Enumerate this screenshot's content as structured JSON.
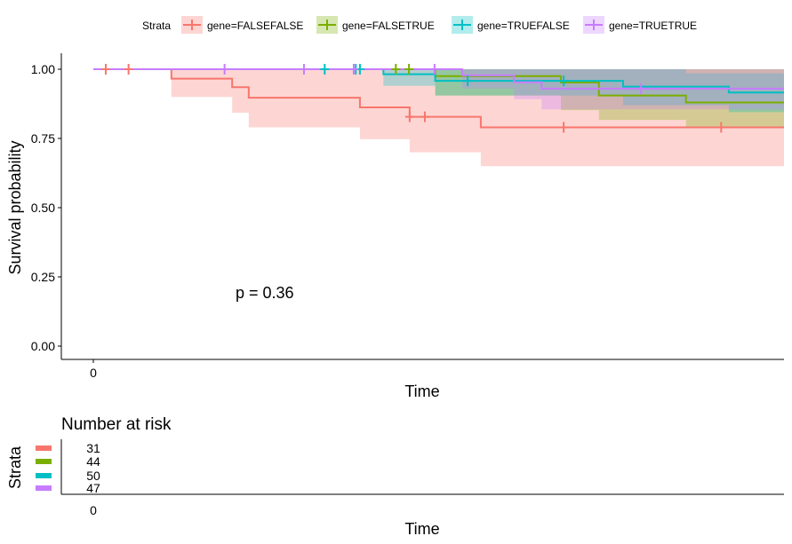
{
  "chart_data": {
    "type": "line",
    "subtype": "kaplan-meier survival",
    "xlabel": "Time",
    "ylabel": "Survival probability",
    "xlim": [
      -4.6,
      100
    ],
    "ylim": [
      0,
      1
    ],
    "x_ticks": [
      "0"
    ],
    "y_ticks": [
      "0.00",
      "0.25",
      "0.50",
      "0.75",
      "1.00"
    ],
    "grid": false,
    "annotation": "p = 0.36",
    "legend": {
      "title": "Strata",
      "position": "top"
    },
    "series": [
      {
        "name": "gene=FALSEFALSE",
        "color": "#F8766D",
        "steps": [
          [
            0,
            1.0
          ],
          [
            11.3,
            0.966
          ],
          [
            20.1,
            0.935
          ],
          [
            22.5,
            0.897
          ],
          [
            38.6,
            0.862
          ],
          [
            45.8,
            0.828
          ],
          [
            56.1,
            0.79
          ],
          [
            100,
            0.79
          ]
        ],
        "lower": [
          [
            0,
            1.0
          ],
          [
            11.3,
            0.9
          ],
          [
            20.1,
            0.843
          ],
          [
            22.5,
            0.79
          ],
          [
            38.6,
            0.747
          ],
          [
            45.8,
            0.7
          ],
          [
            56.1,
            0.65
          ],
          [
            100,
            0.65
          ]
        ],
        "upper": [
          [
            0,
            1.0
          ],
          [
            100,
            1.0
          ]
        ],
        "censored": [
          [
            1.8,
            1.0
          ],
          [
            5.1,
            1.0
          ],
          [
            45.8,
            0.828
          ],
          [
            48.0,
            0.828
          ],
          [
            68.1,
            0.79
          ],
          [
            90.9,
            0.79
          ]
        ]
      },
      {
        "name": "gene=FALSETRUE",
        "color": "#7CAE00",
        "steps": [
          [
            0,
            1.0
          ],
          [
            49.5,
            0.975
          ],
          [
            67.7,
            0.952
          ],
          [
            73.2,
            0.905
          ],
          [
            85.8,
            0.88
          ],
          [
            100,
            0.88
          ]
        ],
        "lower": [
          [
            0,
            1.0
          ],
          [
            49.5,
            0.905
          ],
          [
            67.7,
            0.852
          ],
          [
            73.2,
            0.817
          ],
          [
            85.8,
            0.79
          ],
          [
            100,
            0.79
          ]
        ],
        "upper": [
          [
            0,
            1.0
          ],
          [
            100,
            1.0
          ]
        ],
        "censored": [
          [
            43.8,
            1.0
          ],
          [
            45.7,
            1.0
          ]
        ]
      },
      {
        "name": "gene=TRUEFALSE",
        "color": "#00BFC4",
        "steps": [
          [
            0,
            1.0
          ],
          [
            42.0,
            0.982
          ],
          [
            49.5,
            0.958
          ],
          [
            76.7,
            0.937
          ],
          [
            92.0,
            0.916
          ],
          [
            100,
            0.916
          ]
        ],
        "lower": [
          [
            0,
            1.0
          ],
          [
            42.0,
            0.94
          ],
          [
            49.5,
            0.905
          ],
          [
            76.7,
            0.87
          ],
          [
            92.0,
            0.845
          ],
          [
            100,
            0.845
          ]
        ],
        "upper": [
          [
            0,
            1.0
          ],
          [
            85.8,
            0.985
          ],
          [
            100,
            0.985
          ]
        ],
        "censored": [
          [
            33.5,
            1.0
          ],
          [
            38.0,
            1.0
          ],
          [
            38.6,
            1.0
          ],
          [
            54.2,
            0.958
          ],
          [
            68.1,
            0.958
          ]
        ]
      },
      {
        "name": "gene=TRUETRUE",
        "color": "#C77CFF",
        "steps": [
          [
            0,
            1.0
          ],
          [
            53.4,
            0.978
          ],
          [
            60.9,
            0.953
          ],
          [
            64.9,
            0.93
          ],
          [
            100,
            0.93
          ]
        ],
        "lower": [
          [
            0,
            1.0
          ],
          [
            53.4,
            0.93
          ],
          [
            60.9,
            0.892
          ],
          [
            64.9,
            0.855
          ],
          [
            100,
            0.855
          ]
        ],
        "upper": [
          [
            0,
            1.0
          ],
          [
            100,
            1.0
          ]
        ],
        "censored": [
          [
            19.0,
            1.0
          ],
          [
            30.5,
            1.0
          ],
          [
            37.7,
            1.0
          ],
          [
            49.4,
            1.0
          ],
          [
            79.3,
            0.93
          ]
        ]
      }
    ]
  },
  "risk_table": {
    "title": "Number at risk",
    "ylabel": "Strata",
    "xlabel": "Time",
    "x_ticks": [
      "0"
    ],
    "counts": [
      "31",
      "44",
      "50",
      "47"
    ]
  }
}
